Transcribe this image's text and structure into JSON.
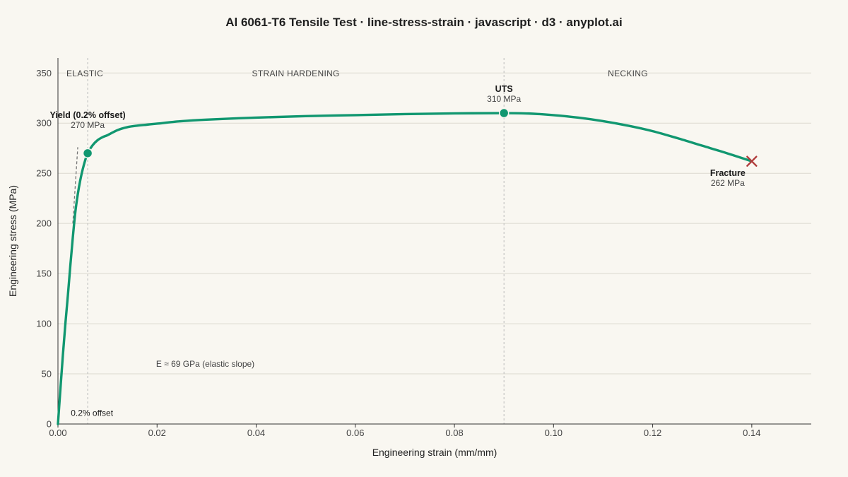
{
  "title": "Al 6061-T6 Tensile Test · line-stress-strain · javascript · d3 · anyplot.ai",
  "chart_data": {
    "type": "line",
    "xlabel": "Engineering strain (mm/mm)",
    "ylabel": "Engineering stress (MPa)",
    "xlim": [
      0,
      0.152
    ],
    "ylim": [
      0,
      365
    ],
    "x_ticks": [
      0,
      0.02,
      0.04,
      0.06,
      0.08,
      0.1,
      0.12,
      0.14
    ],
    "x_tick_labels": [
      "0.00",
      "0.02",
      "0.04",
      "0.06",
      "0.08",
      "0.10",
      "0.12",
      "0.14"
    ],
    "y_ticks": [
      0,
      50,
      100,
      150,
      200,
      250,
      300,
      350
    ],
    "y_tick_labels": [
      "0",
      "50",
      "100",
      "150",
      "200",
      "250",
      "300",
      "350"
    ],
    "grid": "horizontal",
    "series": [
      {
        "color": "#119770",
        "x": [
          0,
          0.0005,
          0.001,
          0.0015,
          0.002,
          0.0025,
          0.003,
          0.0035,
          0.004,
          0.0045,
          0.005,
          0.0055,
          0.006,
          0.007,
          0.008,
          0.009,
          0.01,
          0.012,
          0.014,
          0.016,
          0.018,
          0.02,
          0.025,
          0.03,
          0.04,
          0.05,
          0.06,
          0.07,
          0.08,
          0.09,
          0.095,
          0.1,
          0.105,
          0.11,
          0.115,
          0.12,
          0.125,
          0.13,
          0.135,
          0.14
        ],
        "y": [
          0,
          35,
          69,
          100,
          128,
          158,
          186,
          211,
          229,
          243,
          254,
          263,
          270,
          278,
          283,
          286,
          288,
          293,
          296,
          297.5,
          298.5,
          299.5,
          302,
          303.5,
          305.5,
          307,
          308,
          309,
          309.7,
          310,
          309.6,
          308,
          305.5,
          302,
          297.5,
          292,
          285,
          277.5,
          270,
          262
        ]
      }
    ],
    "offset_line": {
      "x": [
        0.003,
        0.004
      ],
      "y": [
        200,
        276
      ]
    },
    "region_dividers": [
      0.006,
      0.09
    ],
    "regions": [
      {
        "label": "ELASTIC",
        "x": 0.001
      },
      {
        "label": "STRAIN HARDENING",
        "x": 0.048
      },
      {
        "label": "NECKING",
        "x": 0.115
      }
    ],
    "points": {
      "yield": {
        "x": 0.006,
        "y": 270,
        "label": "Yield (0.2% offset)",
        "value": "270 MPa"
      },
      "uts": {
        "x": 0.09,
        "y": 310,
        "label": "UTS",
        "value": "310 MPa"
      },
      "fracture": {
        "x": 0.14,
        "y": 262,
        "label": "Fracture",
        "value": "262 MPa"
      }
    },
    "notes": {
      "modulus": "E ≈ 69 GPa (elastic slope)",
      "offset": "0.2% offset"
    }
  }
}
